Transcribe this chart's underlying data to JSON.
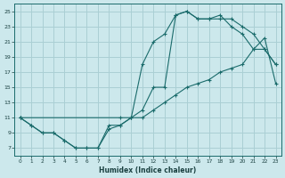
{
  "xlabel": "Humidex (Indice chaleur)",
  "background_color": "#cce8ec",
  "grid_color": "#aacfd4",
  "line_color": "#1a6b6b",
  "line1_x": [
    0,
    1,
    2,
    3,
    4,
    5,
    6,
    7,
    8,
    9,
    10,
    11,
    12,
    13,
    14,
    15,
    16,
    17,
    18,
    19,
    20,
    21,
    22,
    23
  ],
  "line1_y": [
    11,
    10,
    9,
    9,
    8,
    7,
    7,
    7,
    10,
    10,
    11,
    12,
    15,
    15,
    24.5,
    25,
    24,
    24,
    24.5,
    23,
    22,
    20,
    20,
    18
  ],
  "line2_x": [
    0,
    9,
    10,
    11,
    12,
    13,
    14,
    15,
    16,
    17,
    18,
    19,
    20,
    21,
    22,
    23
  ],
  "line2_y": [
    11,
    11,
    11,
    18,
    21,
    22,
    24.5,
    25,
    24,
    24,
    24,
    24,
    23,
    22,
    20,
    18
  ],
  "line3_x": [
    0,
    1,
    2,
    3,
    4,
    5,
    6,
    7,
    8,
    9,
    10,
    11,
    12,
    13,
    14,
    15,
    16,
    17,
    18,
    19,
    20,
    21,
    22,
    23
  ],
  "line3_y": [
    11,
    10,
    9,
    9,
    8,
    7,
    7,
    7,
    9.5,
    10,
    11,
    11,
    12,
    13,
    14,
    15,
    15.5,
    16,
    17,
    17.5,
    18,
    20,
    21.5,
    15.5
  ],
  "xlim": [
    -0.5,
    23.5
  ],
  "ylim": [
    6,
    26
  ],
  "yticks": [
    7,
    9,
    11,
    13,
    15,
    17,
    19,
    21,
    23,
    25
  ],
  "xticks": [
    0,
    1,
    2,
    3,
    4,
    5,
    6,
    7,
    8,
    9,
    10,
    11,
    12,
    13,
    14,
    15,
    16,
    17,
    18,
    19,
    20,
    21,
    22,
    23
  ]
}
